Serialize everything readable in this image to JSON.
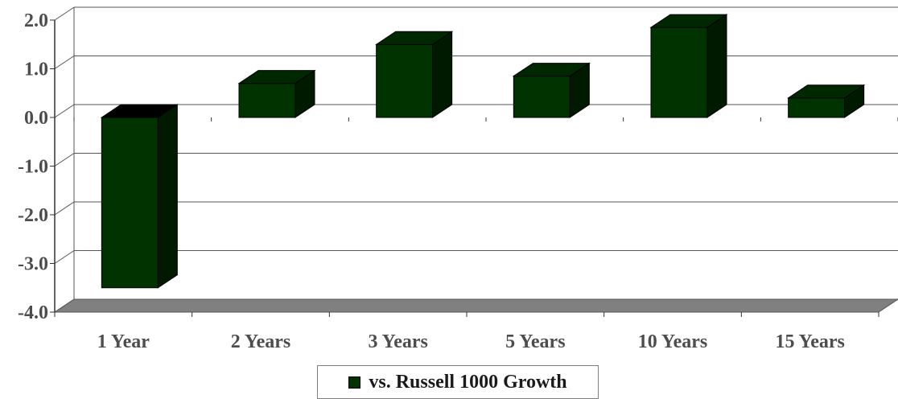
{
  "chart_data": {
    "type": "bar",
    "categories": [
      "1 Year",
      "2 Years",
      "3 Years",
      "5 Years",
      "10 Years",
      "15 Years"
    ],
    "series": [
      {
        "name": "vs. Russell 1000 Growth",
        "values": [
          -3.5,
          0.7,
          1.5,
          0.85,
          1.85,
          0.4
        ]
      }
    ],
    "y_ticks": [
      "2.0",
      "1.0",
      "0.0",
      "-1.0",
      "-2.0",
      "-3.0",
      "-4.0"
    ],
    "ylim": [
      -4,
      2
    ],
    "grid": true,
    "legend": "bottom",
    "colors": {
      "front": "#003300",
      "top": "#002800",
      "side": "#001a00",
      "floor": "#808080"
    }
  }
}
